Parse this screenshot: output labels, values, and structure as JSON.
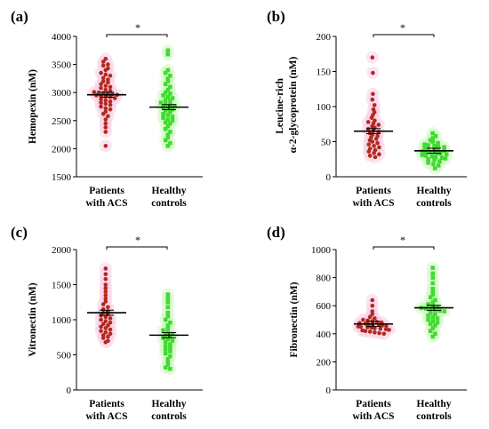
{
  "chart_data": [
    {
      "panel": "(a)",
      "type": "scatter",
      "ylabel": "Hemopexin (nM)",
      "ylim": [
        1500,
        4000
      ],
      "yticks": [
        "1500",
        "2000",
        "2500",
        "3000",
        "3500",
        "4000"
      ],
      "categories": [
        [
          "Patients",
          "with ACS"
        ],
        [
          "Healthy",
          "controls"
        ]
      ],
      "significance": "*",
      "groups": [
        {
          "center": 2960,
          "values": [
            3600,
            3550,
            3500,
            3480,
            3430,
            3400,
            3350,
            3320,
            3300,
            3260,
            3230,
            3200,
            3180,
            3150,
            3120,
            3100,
            3080,
            3050,
            3030,
            3010,
            3000,
            2990,
            2980,
            2970,
            2960,
            2950,
            2940,
            2930,
            2920,
            2900,
            2880,
            2860,
            2840,
            2820,
            2800,
            2780,
            2750,
            2720,
            2700,
            2660,
            2620,
            2580,
            2520,
            2450,
            2380,
            2300,
            2050
          ]
        },
        {
          "center": 2740,
          "values": [
            3750,
            3680,
            3400,
            3350,
            3300,
            3250,
            3200,
            3150,
            3100,
            3050,
            3000,
            2980,
            2950,
            2920,
            2900,
            2870,
            2850,
            2820,
            2800,
            2780,
            2760,
            2740,
            2720,
            2700,
            2680,
            2650,
            2620,
            2600,
            2570,
            2550,
            2520,
            2500,
            2470,
            2450,
            2400,
            2350,
            2300,
            2250,
            2200,
            2150,
            2100,
            2050
          ]
        }
      ]
    },
    {
      "panel": "(b)",
      "type": "scatter",
      "ylabel": "Leucine-rich α-2-glycoprotein (nM)",
      "ylim": [
        0,
        200
      ],
      "yticks": [
        "0",
        "50",
        "100",
        "150",
        "200"
      ],
      "categories": [
        [
          "Patients",
          "with ACS"
        ],
        [
          "Healthy",
          "controls"
        ]
      ],
      "significance": "*",
      "groups": [
        {
          "center": 65,
          "values": [
            170,
            148,
            118,
            110,
            102,
            96,
            92,
            88,
            84,
            80,
            78,
            76,
            74,
            72,
            70,
            68,
            66,
            64,
            62,
            60,
            58,
            56,
            54,
            52,
            50,
            48,
            46,
            44,
            42,
            40,
            38,
            36,
            34,
            32,
            30,
            28
          ]
        },
        {
          "center": 37,
          "values": [
            62,
            58,
            55,
            52,
            50,
            48,
            46,
            45,
            44,
            43,
            42,
            41,
            40,
            39,
            38,
            37,
            36,
            35,
            35,
            34,
            33,
            32,
            31,
            30,
            29,
            28,
            27,
            26,
            25,
            24,
            22,
            20,
            18,
            16,
            12
          ]
        }
      ]
    },
    {
      "panel": "(c)",
      "type": "scatter",
      "ylabel": "Vitronectin (nM)",
      "ylim": [
        0,
        2000
      ],
      "yticks": [
        "0",
        "500",
        "1000",
        "1500",
        "2000"
      ],
      "categories": [
        [
          "Patients",
          "with ACS"
        ],
        [
          "Healthy",
          "controls"
        ]
      ],
      "significance": "*",
      "groups": [
        {
          "center": 1100,
          "values": [
            1730,
            1650,
            1580,
            1500,
            1450,
            1400,
            1350,
            1300,
            1260,
            1220,
            1180,
            1150,
            1120,
            1100,
            1080,
            1060,
            1040,
            1020,
            1000,
            980,
            960,
            940,
            920,
            900,
            880,
            860,
            840,
            820,
            800,
            780,
            760,
            740,
            700,
            680
          ]
        },
        {
          "center": 780,
          "values": [
            1360,
            1300,
            1250,
            1180,
            1100,
            1050,
            1000,
            960,
            920,
            880,
            850,
            820,
            800,
            780,
            760,
            740,
            720,
            700,
            680,
            650,
            620,
            600,
            580,
            550,
            520,
            480,
            440,
            400,
            360,
            320,
            300
          ]
        }
      ]
    },
    {
      "panel": "(d)",
      "type": "scatter",
      "ylabel": "Fibronectin (nM)",
      "ylim": [
        0,
        1000
      ],
      "yticks": [
        "0",
        "200",
        "400",
        "600",
        "800",
        "1000"
      ],
      "categories": [
        [
          "Patients",
          "with ACS"
        ],
        [
          "Healthy",
          "controls"
        ]
      ],
      "significance": "*",
      "groups": [
        {
          "center": 470,
          "values": [
            640,
            600,
            560,
            540,
            520,
            510,
            500,
            495,
            490,
            485,
            480,
            476,
            472,
            468,
            465,
            462,
            458,
            455,
            452,
            450,
            447,
            444,
            440,
            436,
            432,
            428,
            424,
            420,
            415,
            410,
            405,
            400
          ]
        },
        {
          "center": 585,
          "values": [
            870,
            830,
            800,
            760,
            720,
            700,
            680,
            660,
            640,
            625,
            610,
            600,
            590,
            585,
            580,
            575,
            570,
            565,
            560,
            550,
            540,
            530,
            520,
            510,
            500,
            490,
            480,
            470,
            460,
            440,
            420,
            400,
            380
          ]
        }
      ]
    }
  ],
  "colors": {
    "patients_marker": "#b22a1e",
    "patients_halo": "#f7cfe5",
    "controls_marker": "#3fdc2f",
    "controls_halo": "#d4f7c6",
    "axis": "#000000"
  }
}
